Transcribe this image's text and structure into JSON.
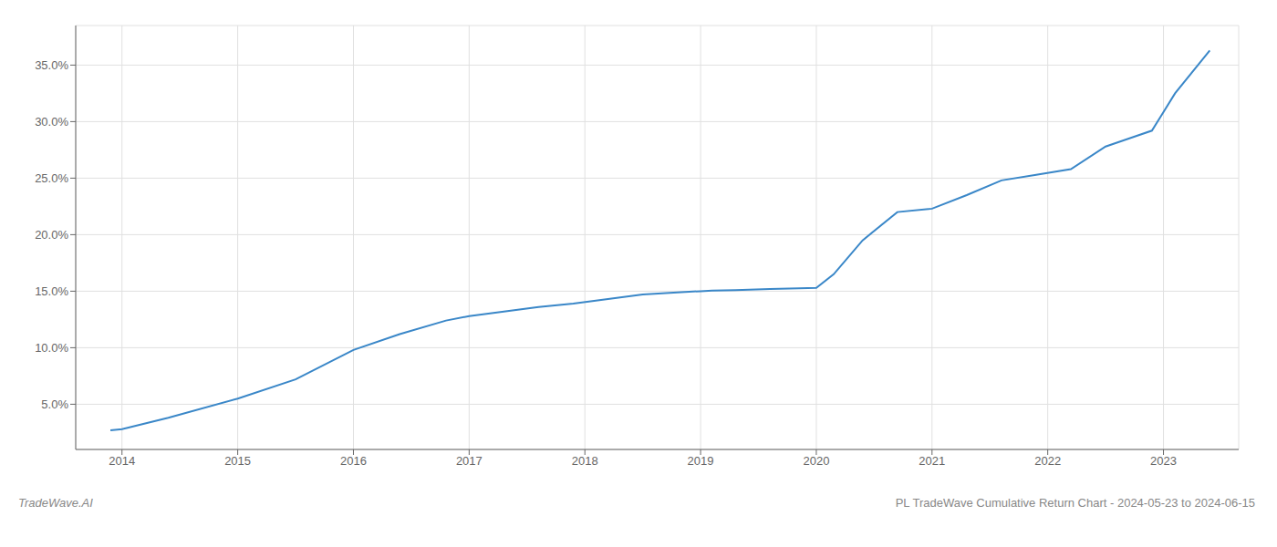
{
  "chart_data": {
    "type": "line",
    "x": [
      2013.9,
      2014.0,
      2014.4,
      2015.0,
      2015.5,
      2016.0,
      2016.4,
      2016.8,
      2017.0,
      2017.3,
      2017.6,
      2017.9,
      2018.2,
      2018.5,
      2018.8,
      2019.0,
      2019.1,
      2019.3,
      2019.6,
      2019.85,
      2020.0,
      2020.15,
      2020.4,
      2020.7,
      2021.0,
      2021.3,
      2021.6,
      2021.9,
      2022.2,
      2022.5,
      2022.7,
      2022.9,
      2023.1,
      2023.4
    ],
    "values": [
      2.7,
      2.8,
      3.8,
      5.5,
      7.2,
      9.8,
      11.2,
      12.4,
      12.8,
      13.2,
      13.6,
      13.9,
      14.3,
      14.7,
      14.9,
      15.0,
      15.05,
      15.1,
      15.2,
      15.25,
      15.3,
      16.5,
      19.5,
      22.0,
      22.3,
      23.5,
      24.8,
      25.3,
      25.8,
      27.8,
      28.5,
      29.2,
      32.5,
      36.3
    ],
    "color": "#3a87c8",
    "xlim": [
      2013.6,
      2023.65
    ],
    "ylim": [
      1.0,
      38.5
    ],
    "xticks": [
      2014,
      2015,
      2016,
      2017,
      2018,
      2019,
      2020,
      2021,
      2022,
      2023
    ],
    "yticks": [
      {
        "value": 5.0,
        "label": "5.0%"
      },
      {
        "value": 10.0,
        "label": "10.0%"
      },
      {
        "value": 15.0,
        "label": "15.0%"
      },
      {
        "value": 20.0,
        "label": "20.0%"
      },
      {
        "value": 25.0,
        "label": "25.0%"
      },
      {
        "value": 30.0,
        "label": "30.0%"
      },
      {
        "value": 35.0,
        "label": "35.0%"
      }
    ],
    "grid": true,
    "annotations": [
      "TradeWave.AI",
      "PL TradeWave Cumulative Return Chart - 2024-05-23 to 2024-06-15"
    ]
  }
}
